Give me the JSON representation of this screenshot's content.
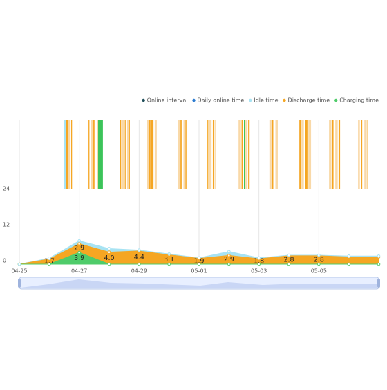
{
  "chart_data": {
    "type": "stacked-area",
    "categories": [
      "04-25",
      null,
      "04-27",
      null,
      "04-29",
      null,
      "05-01",
      null,
      "05-03",
      null,
      "05-05",
      null,
      null
    ],
    "ylim": [
      0,
      24
    ],
    "yticks": [
      0,
      12,
      24
    ],
    "xlim": [
      0,
      12
    ],
    "grid": true,
    "legend": "top-right",
    "series": [
      {
        "name": "Online interval",
        "color": "#1f4e5a",
        "intervals": [
          [
            1.5,
            1.56,
            "#a7e3f3"
          ],
          [
            1.56,
            1.62,
            "#f5a623"
          ],
          [
            1.62,
            1.71,
            "#f9d9a8"
          ],
          [
            1.73,
            1.76,
            "#f5a623"
          ],
          [
            2.31,
            2.34,
            "#f5a623"
          ],
          [
            2.38,
            2.45,
            "#f9d9a8"
          ],
          [
            2.47,
            2.51,
            "#f5a623"
          ],
          [
            2.6,
            2.63,
            "#f9d9a8"
          ],
          [
            2.63,
            2.79,
            "#3cc45a"
          ],
          [
            3.35,
            3.4,
            "#f5a623"
          ],
          [
            3.42,
            3.5,
            "#f9d9a8"
          ],
          [
            3.52,
            3.55,
            "#f5a623"
          ],
          [
            3.6,
            3.66,
            "#f9d9a8"
          ],
          [
            3.66,
            3.69,
            "#f5a623"
          ],
          [
            4.25,
            4.32,
            "#f9d9a8"
          ],
          [
            4.33,
            4.38,
            "#f5a623"
          ],
          [
            4.4,
            4.48,
            "#f5a623"
          ],
          [
            4.52,
            4.59,
            "#f9d9a8"
          ],
          [
            5.29,
            5.36,
            "#f9d9a8"
          ],
          [
            5.38,
            5.42,
            "#f5a623"
          ],
          [
            5.48,
            5.55,
            "#f9d9a8"
          ],
          [
            5.55,
            5.58,
            "#f5a623"
          ],
          [
            6.28,
            6.31,
            "#f5a623"
          ],
          [
            6.34,
            6.42,
            "#f9d9a8"
          ],
          [
            6.46,
            6.5,
            "#f5a623"
          ],
          [
            6.52,
            6.55,
            "#f9d9a8"
          ],
          [
            7.32,
            7.4,
            "#f9d9a8"
          ],
          [
            7.42,
            7.47,
            "#f5a623"
          ],
          [
            7.5,
            7.53,
            "#3cc45a"
          ],
          [
            7.55,
            7.62,
            "#f9d9a8"
          ],
          [
            7.64,
            7.69,
            "#f5a623"
          ],
          [
            8.35,
            8.42,
            "#f9d9a8"
          ],
          [
            8.44,
            8.48,
            "#f5a623"
          ],
          [
            8.55,
            8.63,
            "#f9d9a8"
          ],
          [
            9.35,
            9.4,
            "#f5a623"
          ],
          [
            9.42,
            9.5,
            "#f9d9a8"
          ],
          [
            9.55,
            9.62,
            "#f5a623"
          ],
          [
            9.65,
            9.74,
            "#f9d9a8"
          ],
          [
            10.34,
            10.42,
            "#f9d9a8"
          ],
          [
            10.44,
            10.49,
            "#f5a623"
          ],
          [
            10.55,
            10.63,
            "#f9d9a8"
          ],
          [
            10.66,
            10.71,
            "#f5a623"
          ],
          [
            11.31,
            11.37,
            "#f9d9a8"
          ],
          [
            11.4,
            11.45,
            "#f5a623"
          ],
          [
            11.52,
            11.6,
            "#f9d9a8"
          ],
          [
            11.62,
            11.65,
            "#f5a623"
          ]
        ]
      },
      {
        "name": "Daily online time",
        "color": "#2b7bd0"
      },
      {
        "name": "Idle time",
        "color": "#a7e3f3",
        "stack": 3,
        "values": [
          0,
          0.3,
          1.0,
          1.2,
          0.3,
          0.3,
          0.2,
          1.3,
          0.3,
          0.2,
          0.2,
          0.3,
          0.3
        ]
      },
      {
        "name": "Discharge time",
        "color": "#f5a623",
        "stack": 2,
        "values": [
          0,
          1.7,
          2.9,
          4.0,
          4.4,
          3.1,
          1.9,
          2.9,
          1.8,
          2.8,
          2.8,
          2.4,
          2.4
        ],
        "value_labels": [
          null,
          "1.7",
          "2.9",
          "4.0",
          "4.4",
          "3.1",
          "1.9",
          "2.9",
          "1.8",
          "2.8",
          "2.8",
          null,
          null
        ]
      },
      {
        "name": "Charging time",
        "color": "#4fcc6a",
        "stack": 1,
        "values": [
          0,
          0,
          3.9,
          0,
          0,
          0,
          0,
          0,
          0,
          0,
          0,
          0,
          0
        ],
        "value_labels": [
          null,
          null,
          "3.9",
          null,
          null,
          null,
          null,
          null,
          null,
          null,
          null,
          null,
          null
        ]
      }
    ]
  }
}
